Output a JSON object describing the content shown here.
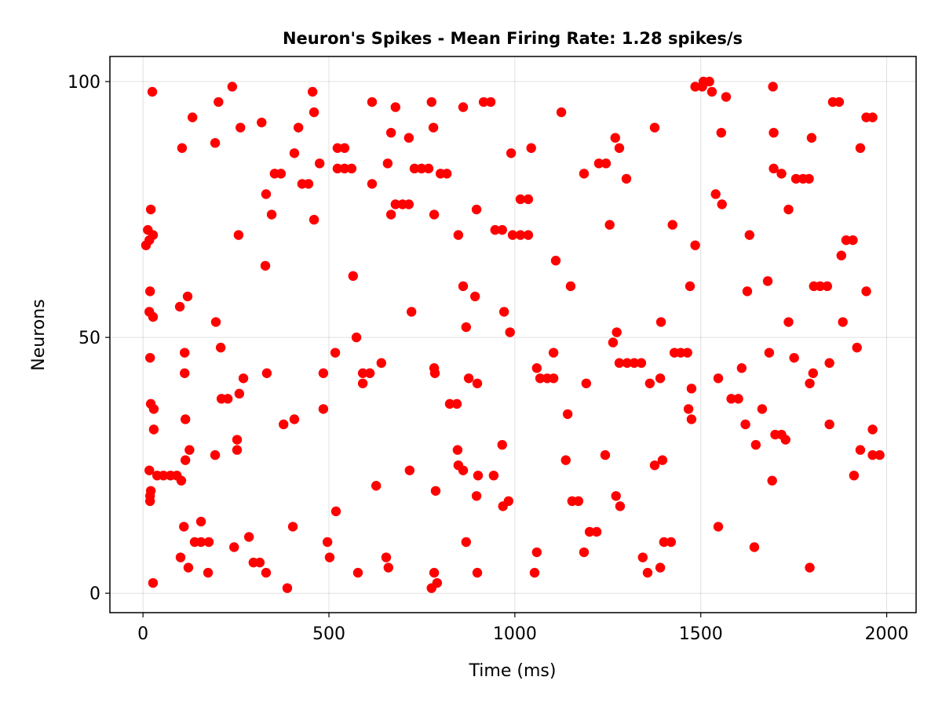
{
  "chart_data": {
    "type": "scatter",
    "title": "Neuron's Spikes - Mean Firing Rate: 1.28 spikes/s",
    "xlabel": "Time (ms)",
    "ylabel": "Neurons",
    "xlim": [
      -89,
      2079
    ],
    "ylim": [
      -3.8,
      104.9
    ],
    "xticks": [
      0,
      500,
      1000,
      1500,
      2000
    ],
    "yticks": [
      0,
      50,
      100
    ],
    "grid": true,
    "marker_color": "#ff0000",
    "series": [
      {
        "points": [
          [
            8,
            68
          ],
          [
            13,
            71
          ],
          [
            17,
            69
          ],
          [
            27,
            70
          ],
          [
            21,
            75
          ],
          [
            25,
            98
          ],
          [
            19,
            59
          ],
          [
            17,
            55
          ],
          [
            27,
            54
          ],
          [
            19,
            46
          ],
          [
            21,
            37
          ],
          [
            29,
            36
          ],
          [
            29,
            32
          ],
          [
            17,
            24
          ],
          [
            21,
            20
          ],
          [
            19,
            19
          ],
          [
            19,
            18
          ],
          [
            27,
            2
          ],
          [
            38,
            23
          ],
          [
            55,
            23
          ],
          [
            74,
            23
          ],
          [
            91,
            23
          ],
          [
            103,
            22
          ],
          [
            133,
            93
          ],
          [
            105,
            87
          ],
          [
            203,
            96
          ],
          [
            240,
            99
          ],
          [
            262,
            91
          ],
          [
            194,
            88
          ],
          [
            319,
            92
          ],
          [
            418,
            91
          ],
          [
            407,
            86
          ],
          [
            354,
            82
          ],
          [
            371,
            82
          ],
          [
            428,
            80
          ],
          [
            445,
            80
          ],
          [
            331,
            78
          ],
          [
            346,
            74
          ],
          [
            257,
            70
          ],
          [
            456,
            98
          ],
          [
            460,
            94
          ],
          [
            460,
            73
          ],
          [
            329,
            64
          ],
          [
            120,
            58
          ],
          [
            99,
            56
          ],
          [
            196,
            53
          ],
          [
            209,
            48
          ],
          [
            112,
            47
          ],
          [
            112,
            43
          ],
          [
            333,
            43
          ],
          [
            270,
            42
          ],
          [
            259,
            39
          ],
          [
            211,
            38
          ],
          [
            228,
            38
          ],
          [
            114,
            34
          ],
          [
            378,
            33
          ],
          [
            407,
            34
          ],
          [
            253,
            30
          ],
          [
            253,
            28
          ],
          [
            125,
            28
          ],
          [
            114,
            26
          ],
          [
            194,
            27
          ],
          [
            156,
            14
          ],
          [
            110,
            13
          ],
          [
            403,
            13
          ],
          [
            139,
            10
          ],
          [
            156,
            10
          ],
          [
            177,
            10
          ],
          [
            285,
            11
          ],
          [
            245,
            9
          ],
          [
            101,
            7
          ],
          [
            297,
            6
          ],
          [
            314,
            6
          ],
          [
            122,
            5
          ],
          [
            175,
            4
          ],
          [
            331,
            4
          ],
          [
            388,
            1
          ],
          [
            475,
            84
          ],
          [
            616,
            96
          ],
          [
            679,
            95
          ],
          [
            776,
            96
          ],
          [
            861,
            95
          ],
          [
            916,
            96
          ],
          [
            935,
            96
          ],
          [
            667,
            90
          ],
          [
            715,
            89
          ],
          [
            781,
            91
          ],
          [
            523,
            87
          ],
          [
            542,
            87
          ],
          [
            990,
            86
          ],
          [
            523,
            83
          ],
          [
            542,
            83
          ],
          [
            561,
            83
          ],
          [
            658,
            84
          ],
          [
            730,
            83
          ],
          [
            749,
            83
          ],
          [
            768,
            83
          ],
          [
            800,
            82
          ],
          [
            817,
            82
          ],
          [
            616,
            80
          ],
          [
            679,
            76
          ],
          [
            698,
            76
          ],
          [
            715,
            76
          ],
          [
            667,
            74
          ],
          [
            783,
            74
          ],
          [
            897,
            75
          ],
          [
            848,
            70
          ],
          [
            947,
            71
          ],
          [
            966,
            71
          ],
          [
            994,
            70
          ],
          [
            565,
            62
          ],
          [
            861,
            60
          ],
          [
            893,
            58
          ],
          [
            722,
            55
          ],
          [
            971,
            55
          ],
          [
            869,
            52
          ],
          [
            987,
            51
          ],
          [
            574,
            50
          ],
          [
            517,
            47
          ],
          [
            641,
            45
          ],
          [
            485,
            43
          ],
          [
            591,
            43
          ],
          [
            610,
            43
          ],
          [
            591,
            41
          ],
          [
            783,
            44
          ],
          [
            785,
            43
          ],
          [
            876,
            42
          ],
          [
            899,
            41
          ],
          [
            825,
            37
          ],
          [
            844,
            37
          ],
          [
            485,
            36
          ],
          [
            966,
            29
          ],
          [
            846,
            28
          ],
          [
            848,
            25
          ],
          [
            861,
            24
          ],
          [
            901,
            23
          ],
          [
            943,
            23
          ],
          [
            717,
            24
          ],
          [
            627,
            21
          ],
          [
            787,
            20
          ],
          [
            897,
            19
          ],
          [
            983,
            18
          ],
          [
            968,
            17
          ],
          [
            519,
            16
          ],
          [
            496,
            10
          ],
          [
            502,
            7
          ],
          [
            654,
            7
          ],
          [
            660,
            5
          ],
          [
            578,
            4
          ],
          [
            783,
            4
          ],
          [
            899,
            4
          ],
          [
            791,
            2
          ],
          [
            776,
            1
          ],
          [
            869,
            10
          ],
          [
            1125,
            94
          ],
          [
            1376,
            91
          ],
          [
            1485,
            99
          ],
          [
            1504,
            99
          ],
          [
            1507,
            100
          ],
          [
            1523,
            100
          ],
          [
            1530,
            98
          ],
          [
            1044,
            87
          ],
          [
            1270,
            89
          ],
          [
            1281,
            87
          ],
          [
            1226,
            84
          ],
          [
            1245,
            84
          ],
          [
            1186,
            82
          ],
          [
            1300,
            81
          ],
          [
            1015,
            77
          ],
          [
            1036,
            77
          ],
          [
            1255,
            72
          ],
          [
            1424,
            72
          ],
          [
            1015,
            70
          ],
          [
            1036,
            70
          ],
          [
            1485,
            68
          ],
          [
            1110,
            65
          ],
          [
            1150,
            60
          ],
          [
            1471,
            60
          ],
          [
            1393,
            53
          ],
          [
            1274,
            51
          ],
          [
            1264,
            49
          ],
          [
            1104,
            47
          ],
          [
            1429,
            47
          ],
          [
            1446,
            47
          ],
          [
            1464,
            47
          ],
          [
            1059,
            44
          ],
          [
            1068,
            42
          ],
          [
            1087,
            42
          ],
          [
            1104,
            42
          ],
          [
            1281,
            45
          ],
          [
            1302,
            45
          ],
          [
            1321,
            45
          ],
          [
            1340,
            45
          ],
          [
            1192,
            41
          ],
          [
            1363,
            41
          ],
          [
            1391,
            42
          ],
          [
            1475,
            40
          ],
          [
            1142,
            35
          ],
          [
            1467,
            36
          ],
          [
            1475,
            34
          ],
          [
            1137,
            26
          ],
          [
            1243,
            27
          ],
          [
            1376,
            25
          ],
          [
            1397,
            26
          ],
          [
            1154,
            18
          ],
          [
            1171,
            18
          ],
          [
            1272,
            19
          ],
          [
            1283,
            17
          ],
          [
            1201,
            12
          ],
          [
            1220,
            12
          ],
          [
            1059,
            8
          ],
          [
            1186,
            8
          ],
          [
            1401,
            10
          ],
          [
            1420,
            10
          ],
          [
            1344,
            7
          ],
          [
            1053,
            4
          ],
          [
            1357,
            4
          ],
          [
            1391,
            5
          ],
          [
            1568,
            97
          ],
          [
            1694,
            99
          ],
          [
            1855,
            96
          ],
          [
            1872,
            96
          ],
          [
            1945,
            93
          ],
          [
            1962,
            93
          ],
          [
            1555,
            90
          ],
          [
            1696,
            90
          ],
          [
            1798,
            89
          ],
          [
            1929,
            87
          ],
          [
            1696,
            83
          ],
          [
            1717,
            82
          ],
          [
            1756,
            81
          ],
          [
            1775,
            81
          ],
          [
            1791,
            81
          ],
          [
            1540,
            78
          ],
          [
            1557,
            76
          ],
          [
            1736,
            75
          ],
          [
            1631,
            70
          ],
          [
            1891,
            69
          ],
          [
            1909,
            69
          ],
          [
            1878,
            66
          ],
          [
            1680,
            61
          ],
          [
            1625,
            59
          ],
          [
            1804,
            60
          ],
          [
            1821,
            60
          ],
          [
            1840,
            60
          ],
          [
            1945,
            59
          ],
          [
            1736,
            53
          ],
          [
            1882,
            53
          ],
          [
            1920,
            48
          ],
          [
            1684,
            47
          ],
          [
            1751,
            46
          ],
          [
            1846,
            45
          ],
          [
            1610,
            44
          ],
          [
            1802,
            43
          ],
          [
            1793,
            41
          ],
          [
            1547,
            42
          ],
          [
            1582,
            38
          ],
          [
            1601,
            38
          ],
          [
            1665,
            36
          ],
          [
            1620,
            33
          ],
          [
            1846,
            33
          ],
          [
            1962,
            32
          ],
          [
            1700,
            31
          ],
          [
            1717,
            31
          ],
          [
            1728,
            30
          ],
          [
            1648,
            29
          ],
          [
            1929,
            28
          ],
          [
            1962,
            27
          ],
          [
            1981,
            27
          ],
          [
            1912,
            23
          ],
          [
            1692,
            22
          ],
          [
            1547,
            13
          ],
          [
            1644,
            9
          ],
          [
            1793,
            5
          ]
        ]
      }
    ]
  }
}
